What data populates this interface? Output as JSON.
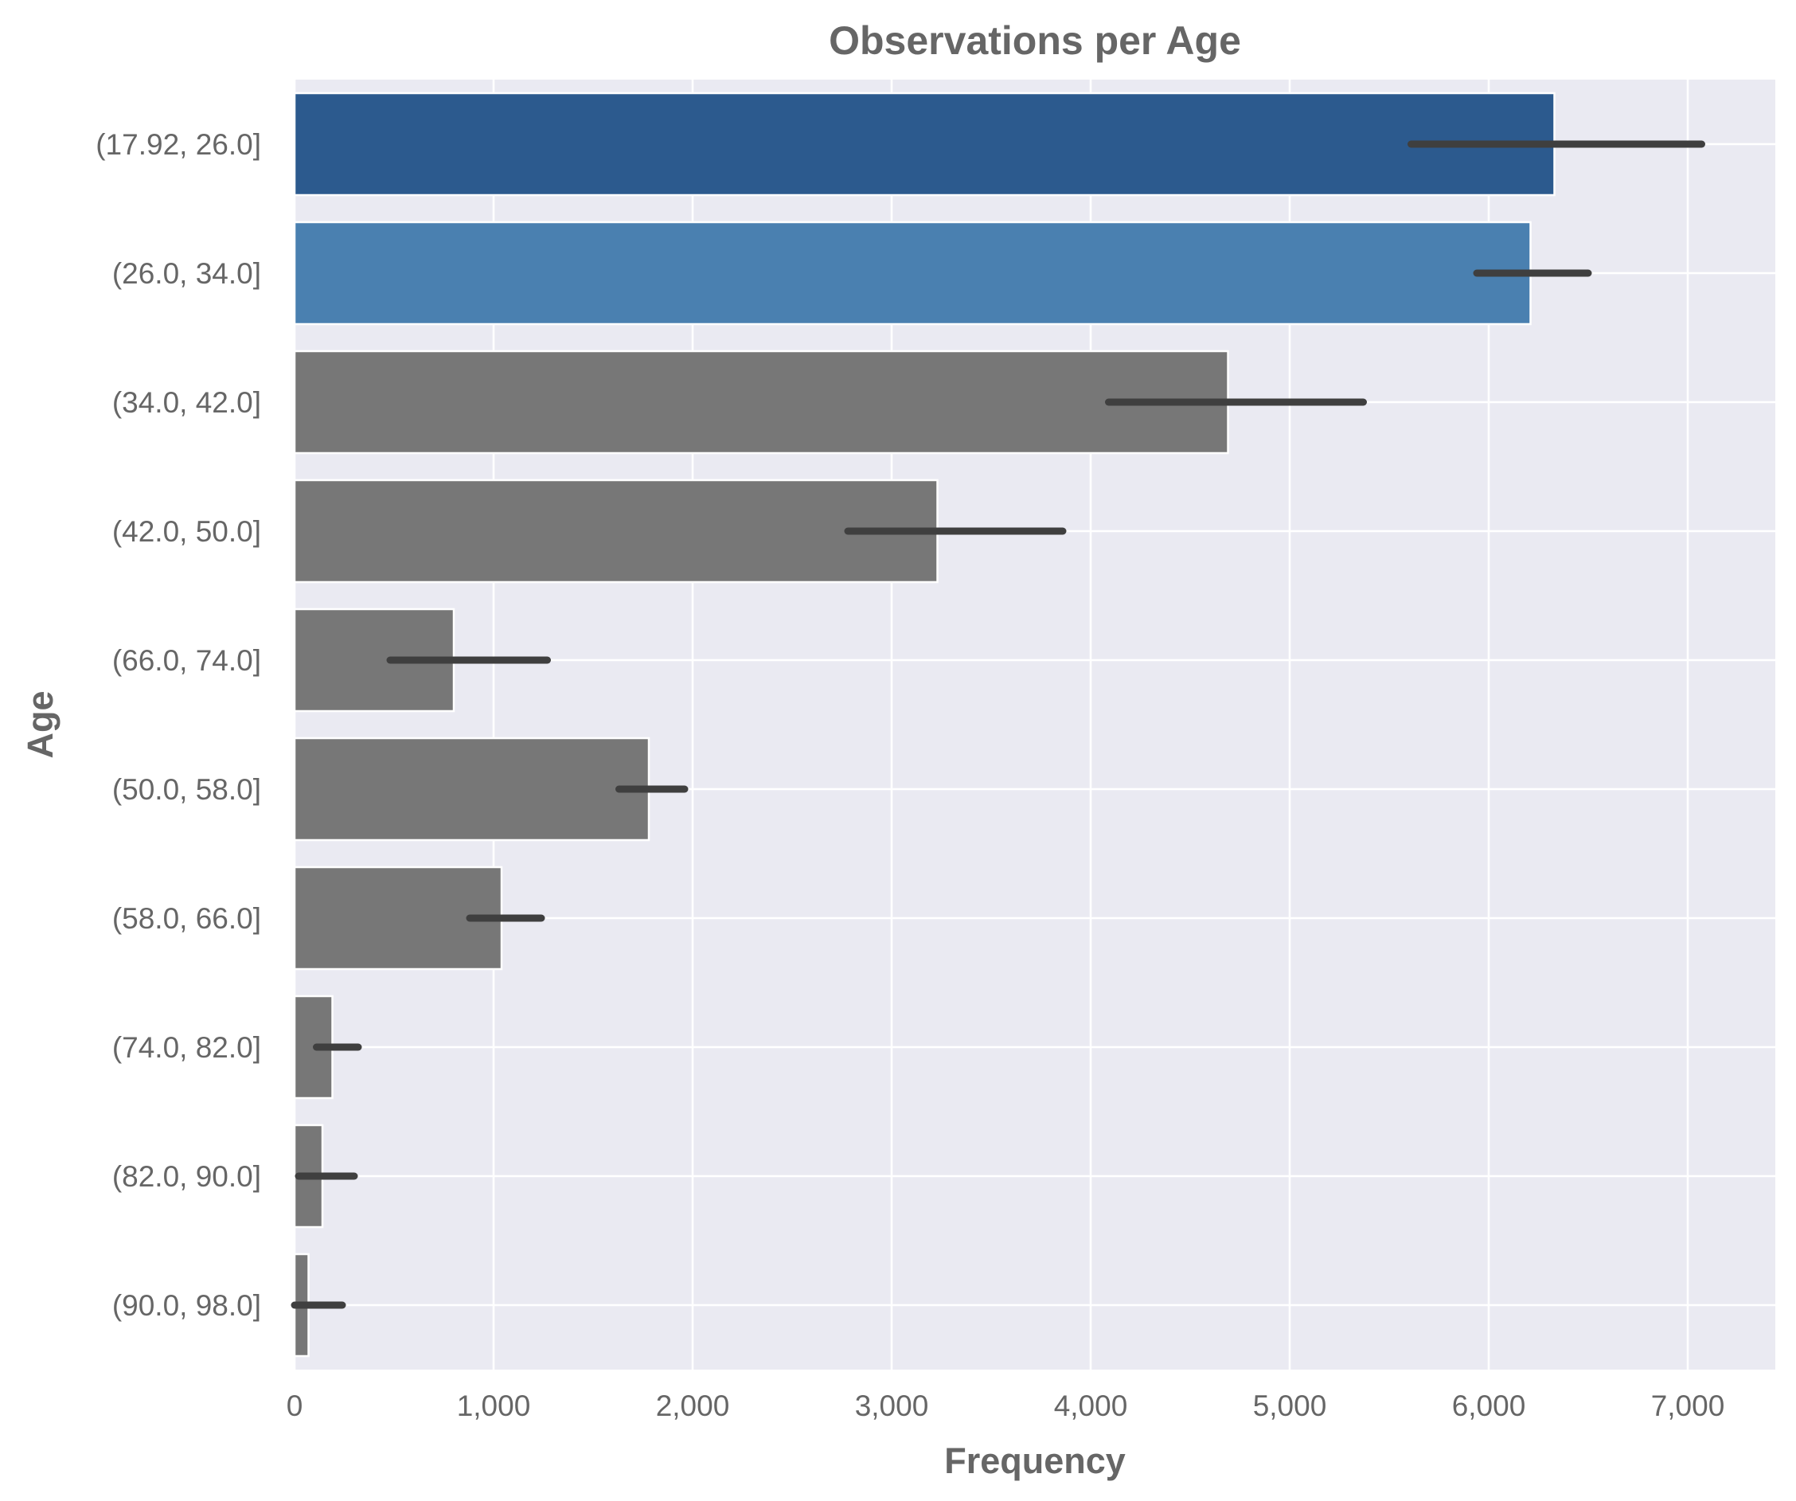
{
  "chart_data": {
    "type": "bar",
    "orientation": "horizontal",
    "title": "Observations per Age",
    "xlabel": "Frequency",
    "ylabel": "Age",
    "xlim": [
      0,
      7400
    ],
    "xticks": [
      0,
      1000,
      2000,
      3000,
      4000,
      5000,
      6000,
      7000
    ],
    "xtick_labels": [
      "0",
      "1,000",
      "2,000",
      "3,000",
      "4,000",
      "5,000",
      "6,000",
      "7,000"
    ],
    "grid": true,
    "legend": "none",
    "categories": [
      "(17.92, 26.0]",
      "(26.0, 34.0]",
      "(34.0, 42.0]",
      "(42.0, 50.0]",
      "(66.0, 74.0]",
      "(50.0, 58.0]",
      "(58.0, 66.0]",
      "(74.0, 82.0]",
      "(82.0, 90.0]",
      "(90.0, 98.0]"
    ],
    "values": [
      6330,
      6210,
      4690,
      3230,
      800,
      1780,
      1040,
      190,
      140,
      70
    ],
    "error_low": [
      5610,
      5940,
      4090,
      2780,
      480,
      1630,
      880,
      110,
      20,
      0
    ],
    "error_high": [
      7070,
      6500,
      5370,
      3860,
      1270,
      1960,
      1240,
      320,
      300,
      240
    ],
    "bar_colors": [
      "#2c5a8e",
      "#4a80b0",
      "#777777",
      "#777777",
      "#777777",
      "#777777",
      "#777777",
      "#777777",
      "#777777",
      "#777777"
    ]
  },
  "colors": {
    "plot_background": "#eaeaf2",
    "grid": "#ffffff",
    "text": "#666666",
    "error_bar": "#3f3f3f"
  }
}
